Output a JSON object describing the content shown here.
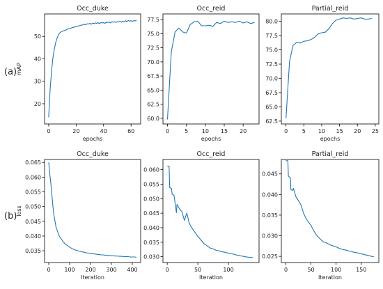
{
  "panel_labels": [
    "(a)",
    "(b)"
  ],
  "chart_data": [
    {
      "type": "line",
      "title": "Occ_duke",
      "xlabel": "epochs",
      "ylabel": "mAP",
      "xlim": [
        -3,
        67
      ],
      "ylim": [
        11,
        60
      ],
      "xticks": [
        0,
        20,
        40,
        60
      ],
      "yticks": [
        20,
        30,
        40,
        50
      ],
      "grid": false,
      "series": [
        {
          "color": "#1f77b4",
          "x": [
            0,
            1,
            2,
            3,
            4,
            5,
            6,
            7,
            8,
            9,
            10,
            11,
            12,
            13,
            14,
            15,
            16,
            17,
            18,
            19,
            20,
            21,
            22,
            23,
            24,
            25,
            26,
            27,
            28,
            29,
            30,
            31,
            32,
            33,
            34,
            35,
            36,
            37,
            38,
            39,
            40,
            41,
            42,
            43,
            44,
            45,
            46,
            47,
            48,
            49,
            50,
            51,
            52,
            53,
            54,
            55,
            56,
            57,
            58,
            59,
            60,
            61,
            62,
            63,
            64
          ],
          "y": [
            14,
            26,
            34,
            40,
            44,
            47,
            49,
            50.5,
            51.5,
            52,
            52.3,
            52.5,
            52.7,
            53,
            53.3,
            53.5,
            53.6,
            53.9,
            54,
            54.2,
            54.4,
            54.5,
            54.7,
            54.9,
            55,
            55.2,
            55.4,
            55.2,
            55.6,
            55.5,
            55.8,
            55.4,
            55.9,
            55.7,
            56,
            55.8,
            56.1,
            55.6,
            56.2,
            56,
            56.1,
            55.8,
            56.3,
            56.2,
            56.4,
            56,
            56.5,
            56.3,
            56.5,
            56.2,
            56.6,
            56.4,
            56.7,
            56.3,
            56.8,
            56.5,
            57,
            56.6,
            57.1,
            56.8,
            57,
            56.6,
            57.1,
            56.9,
            57.2
          ]
        }
      ]
    },
    {
      "type": "line",
      "title": "Occ_reid",
      "xlabel": "epochs",
      "ylabel": "",
      "xlim": [
        -1.2,
        24.2
      ],
      "ylim": [
        59,
        78.5
      ],
      "xticks": [
        0,
        5,
        10,
        15,
        20
      ],
      "yticks": [
        60.0,
        62.5,
        65.0,
        67.5,
        70.0,
        72.5,
        75.0,
        77.5
      ],
      "grid": false,
      "series": [
        {
          "color": "#1f77b4",
          "x": [
            0,
            1,
            2,
            3,
            4,
            5,
            6,
            7,
            8,
            9,
            10,
            11,
            12,
            13,
            14,
            15,
            16,
            17,
            18,
            19,
            20,
            21,
            22,
            23
          ],
          "y": [
            59.8,
            71.8,
            75.3,
            76,
            75.3,
            75.1,
            76.6,
            77.1,
            77.2,
            76.4,
            76.4,
            76.5,
            76.3,
            77,
            76.8,
            77.2,
            77,
            77.1,
            77,
            77.2,
            76.9,
            77.1,
            76.8,
            77
          ]
        }
      ]
    },
    {
      "type": "line",
      "title": "Partial_reid",
      "xlabel": "epochs",
      "ylabel": "",
      "xlim": [
        -1.3,
        26
      ],
      "ylim": [
        62,
        81.3
      ],
      "xticks": [
        0,
        5,
        10,
        15,
        20,
        25
      ],
      "yticks": [
        62.5,
        65.0,
        67.5,
        70.0,
        72.5,
        75.0,
        77.5,
        80.0
      ],
      "grid": false,
      "series": [
        {
          "color": "#1f77b4",
          "x": [
            0,
            1,
            2,
            3,
            4,
            5,
            6,
            7,
            8,
            9,
            10,
            11,
            12,
            13,
            14,
            15,
            16,
            17,
            18,
            19,
            20,
            21,
            22,
            23,
            24
          ],
          "y": [
            63,
            73,
            75.8,
            76.3,
            76.2,
            76.5,
            76.6,
            76.8,
            77.2,
            77.8,
            78,
            78.1,
            78.7,
            79.6,
            80.2,
            80.4,
            80.6,
            80.5,
            80.6,
            80.4,
            80.5,
            80.6,
            80.4,
            80.4,
            80.5
          ]
        }
      ]
    },
    {
      "type": "line",
      "title": "Occ_duke",
      "xlabel": "Iteration",
      "ylabel": "loss",
      "xlim": [
        -20,
        440
      ],
      "ylim": [
        0.031,
        0.066
      ],
      "xticks": [
        0,
        100,
        200,
        300,
        400
      ],
      "yticks": [
        0.035,
        0.04,
        0.045,
        0.05,
        0.055,
        0.06,
        0.065
      ],
      "grid": false,
      "series": [
        {
          "color": "#1f77b4",
          "x": [
            0,
            5,
            10,
            15,
            20,
            25,
            30,
            35,
            40,
            45,
            50,
            55,
            60,
            70,
            80,
            90,
            100,
            110,
            120,
            130,
            140,
            150,
            160,
            170,
            180,
            190,
            200,
            210,
            220,
            230,
            240,
            250,
            260,
            270,
            280,
            290,
            300,
            310,
            320,
            330,
            340,
            350,
            360,
            370,
            380,
            390,
            400,
            410,
            420
          ],
          "y": [
            0.065,
            0.061,
            0.058,
            0.054,
            0.05,
            0.047,
            0.045,
            0.043,
            0.042,
            0.041,
            0.04,
            0.0395,
            0.039,
            0.038,
            0.0372,
            0.0368,
            0.0362,
            0.0358,
            0.0355,
            0.0352,
            0.035,
            0.0348,
            0.0346,
            0.0345,
            0.0343,
            0.0342,
            0.0341,
            0.034,
            0.0339,
            0.0338,
            0.0337,
            0.0336,
            0.0336,
            0.0335,
            0.0334,
            0.0334,
            0.0333,
            0.0333,
            0.0332,
            0.0332,
            0.0331,
            0.0331,
            0.033,
            0.033,
            0.033,
            0.0329,
            0.0329,
            0.0329,
            0.0328
          ]
        }
      ]
    },
    {
      "type": "line",
      "title": "Occ_reid",
      "xlabel": "Iteration",
      "ylabel": "",
      "xlim": [
        -7,
        150
      ],
      "ylim": [
        0.028,
        0.0635
      ],
      "xticks": [
        0,
        50,
        100
      ],
      "yticks": [
        0.03,
        0.035,
        0.04,
        0.045,
        0.05,
        0.055,
        0.06
      ],
      "grid": false,
      "series": [
        {
          "color": "#1f77b4",
          "x": [
            0,
            3,
            4,
            7,
            8,
            11,
            12,
            15,
            16,
            20,
            24,
            28,
            32,
            36,
            40,
            45,
            50,
            55,
            60,
            65,
            70,
            75,
            80,
            85,
            90,
            95,
            100,
            105,
            110,
            115,
            120,
            125,
            130,
            135,
            140
          ],
          "y": [
            0.0612,
            0.0612,
            0.0538,
            0.0535,
            0.0515,
            0.0512,
            0.0498,
            0.0452,
            0.048,
            0.0465,
            0.0455,
            0.0425,
            0.045,
            0.0415,
            0.04,
            0.0385,
            0.037,
            0.0358,
            0.0345,
            0.0338,
            0.033,
            0.0327,
            0.0322,
            0.032,
            0.0317,
            0.0315,
            0.0312,
            0.031,
            0.0308,
            0.0305,
            0.0303,
            0.0301,
            0.0299,
            0.0298,
            0.0297
          ]
        }
      ]
    },
    {
      "type": "line",
      "title": "Partial_reid",
      "xlabel": "Iteration",
      "ylabel": "",
      "xlim": [
        -9,
        185
      ],
      "ylim": [
        0.0235,
        0.0485
      ],
      "xticks": [
        0,
        50,
        100,
        150
      ],
      "yticks": [
        0.025,
        0.03,
        0.035,
        0.04,
        0.045
      ],
      "grid": false,
      "series": [
        {
          "color": "#1f77b4",
          "x": [
            0,
            4,
            5,
            9,
            10,
            14,
            15,
            20,
            25,
            30,
            35,
            40,
            45,
            50,
            55,
            60,
            65,
            70,
            75,
            80,
            85,
            90,
            95,
            100,
            105,
            110,
            115,
            120,
            125,
            130,
            135,
            140,
            145,
            150,
            155,
            160,
            165,
            170,
            175
          ],
          "y": [
            0.0482,
            0.0482,
            0.0445,
            0.044,
            0.0412,
            0.041,
            0.0415,
            0.0395,
            0.0385,
            0.0375,
            0.0355,
            0.0342,
            0.0333,
            0.0325,
            0.0313,
            0.0303,
            0.0296,
            0.029,
            0.0285,
            0.0283,
            0.028,
            0.0277,
            0.0275,
            0.0273,
            0.027,
            0.0268,
            0.0266,
            0.0265,
            0.0263,
            0.0262,
            0.026,
            0.0259,
            0.0258,
            0.0256,
            0.0255,
            0.0253,
            0.0252,
            0.025,
            0.0249
          ]
        }
      ]
    }
  ]
}
